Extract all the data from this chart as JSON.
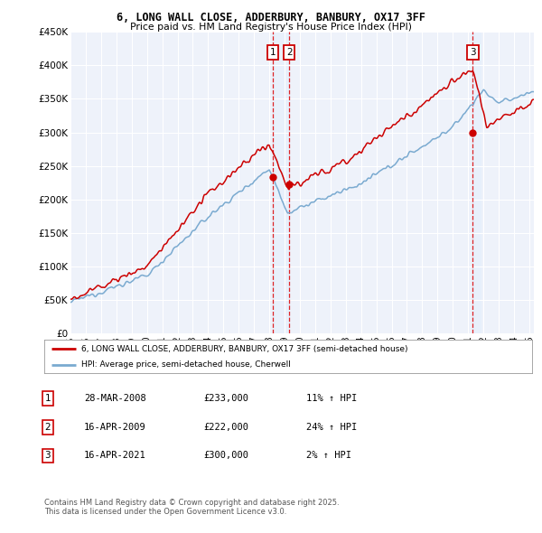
{
  "title": "6, LONG WALL CLOSE, ADDERBURY, BANBURY, OX17 3FF",
  "subtitle": "Price paid vs. HM Land Registry's House Price Index (HPI)",
  "ylabel_ticks": [
    "£0",
    "£50K",
    "£100K",
    "£150K",
    "£200K",
    "£250K",
    "£300K",
    "£350K",
    "£400K",
    "£450K"
  ],
  "ylim": [
    0,
    450000
  ],
  "xlim_start": 1995.0,
  "xlim_end": 2025.3,
  "sale_dates": [
    2008.24,
    2009.3,
    2021.3
  ],
  "sale_prices": [
    233000,
    222000,
    300000
  ],
  "sale_labels": [
    "1",
    "2",
    "3"
  ],
  "vline_color": "#dd0000",
  "hpi_color": "#7aaad0",
  "price_color": "#cc0000",
  "shade_color": "#ddeeff",
  "legend_price_label": "6, LONG WALL CLOSE, ADDERBURY, BANBURY, OX17 3FF (semi-detached house)",
  "legend_hpi_label": "HPI: Average price, semi-detached house, Cherwell",
  "table_rows": [
    [
      "1",
      "28-MAR-2008",
      "£233,000",
      "11% ↑ HPI"
    ],
    [
      "2",
      "16-APR-2009",
      "£222,000",
      "24% ↑ HPI"
    ],
    [
      "3",
      "16-APR-2021",
      "£300,000",
      "2% ↑ HPI"
    ]
  ],
  "footer": "Contains HM Land Registry data © Crown copyright and database right 2025.\nThis data is licensed under the Open Government Licence v3.0.",
  "background_color": "#ffffff",
  "plot_bg_color": "#eef2fa"
}
